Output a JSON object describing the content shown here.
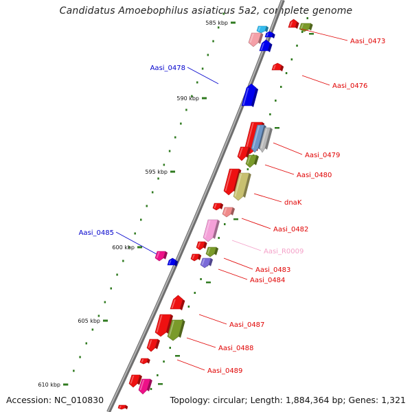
{
  "title": "Candidatus Amoebophilus asiaticus 5a2, complete genome",
  "footer": {
    "accession": "Accession: NC_010830",
    "summary": "Topology: circular; Length: 1,884,364 bp; Genes: 1,321"
  },
  "colors": {
    "backbone": "#8a8a8a",
    "gc_dots": "#2f7a1f",
    "label_red": "#e00000",
    "label_blue": "#0000cc",
    "label_pink": "#f4a0c8"
  },
  "scale_ticks": [
    {
      "label": "585 kbp"
    },
    {
      "label": "590 kbp"
    },
    {
      "label": "595 kbp"
    },
    {
      "label": "600 kbp"
    },
    {
      "label": "605 kbp"
    },
    {
      "label": "610 kbp"
    }
  ],
  "gene_labels": [
    {
      "name": "Aasi_0473",
      "color": "#e00000"
    },
    {
      "name": "Aasi_0478",
      "color": "#0000cc"
    },
    {
      "name": "Aasi_0476",
      "color": "#e00000"
    },
    {
      "name": "Aasi_0479",
      "color": "#e00000"
    },
    {
      "name": "Aasi_0480",
      "color": "#e00000"
    },
    {
      "name": "dnaK",
      "color": "#e00000"
    },
    {
      "name": "Aasi_0482",
      "color": "#e00000"
    },
    {
      "name": "Aasi_0485",
      "color": "#0000cc"
    },
    {
      "name": "Aasi_R0009",
      "color": "#f4a0c8"
    },
    {
      "name": "Aasi_0483",
      "color": "#e00000"
    },
    {
      "name": "Aasi_0484",
      "color": "#e00000"
    },
    {
      "name": "Aasi_0487",
      "color": "#e00000"
    },
    {
      "name": "Aasi_0488",
      "color": "#e00000"
    },
    {
      "name": "Aasi_0489",
      "color": "#e00000"
    }
  ],
  "genes": [
    {
      "color": "#33bbee"
    },
    {
      "color": "#f4a0a8"
    },
    {
      "color": "#0000ee"
    },
    {
      "color": "#0000ee"
    },
    {
      "color": "#ee1111"
    },
    {
      "color": "#7a9a2a"
    },
    {
      "color": "#ee1111"
    },
    {
      "color": "#0000ee"
    },
    {
      "color": "#ee1111"
    },
    {
      "color": "#6f97c8"
    },
    {
      "color": "#b8b8b8"
    },
    {
      "color": "#ee1111"
    },
    {
      "color": "#7a9a2a"
    },
    {
      "color": "#ee1111"
    },
    {
      "color": "#c8c070"
    },
    {
      "color": "#ee1111"
    },
    {
      "color": "#f08a8a"
    },
    {
      "color": "#f4a0d8"
    },
    {
      "color": "#ee1111"
    },
    {
      "color": "#ee1111"
    },
    {
      "color": "#7a9a2a"
    },
    {
      "color": "#7a6ad8"
    },
    {
      "color": "#ee1188"
    },
    {
      "color": "#0000ee"
    },
    {
      "color": "#ee1111"
    },
    {
      "color": "#ee1111"
    },
    {
      "color": "#7a9a2a"
    },
    {
      "color": "#ee1111"
    },
    {
      "color": "#ee1111"
    },
    {
      "color": "#ee1111"
    },
    {
      "color": "#ee1188"
    },
    {
      "color": "#ee1111"
    }
  ]
}
